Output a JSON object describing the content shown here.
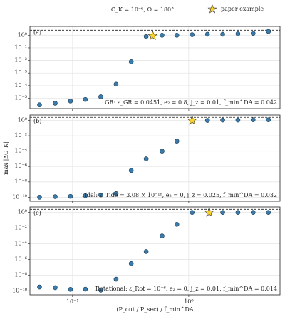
{
  "chart_data": [
    {
      "type": "scatter",
      "title": "C_K = 10⁻⁶,   Ω = 180°",
      "panel_label": "(a)",
      "annotation": "GR: ε_GR = 0.0451, e₂ = 0.8, j_z = 0.01, f_min^DA = 0.042",
      "x": [
        0.052,
        0.071,
        0.096,
        0.129,
        0.175,
        0.237,
        0.32,
        0.43,
        0.59,
        0.79,
        1.07,
        1.45,
        1.96,
        2.65,
        3.58,
        4.85
      ],
      "values": [
        3e-06,
        4e-06,
        6e-06,
        8e-06,
        1.3e-05,
        0.00013,
        0.008,
        0.8,
        1.0,
        1.0,
        1.1,
        1.2,
        1.2,
        1.3,
        1.4,
        2.0
      ],
      "color": "#3b7bab",
      "highlight": {
        "name": "paper example",
        "x": 0.49,
        "value": 0.9,
        "color": "#f5d132"
      },
      "reference_line": 2.5,
      "xlim": [
        0.043,
        6.1
      ],
      "ylim": [
        1.5e-06,
        5
      ],
      "log_x": true,
      "log_y": true,
      "grid": true,
      "xticks": [
        0.1,
        1
      ],
      "yticks": [
        {
          "value": 1e-05,
          "label": "10⁻⁵"
        },
        {
          "value": 0.0001,
          "label": "10⁻⁴"
        },
        {
          "value": 0.001,
          "label": "10⁻³"
        },
        {
          "value": 0.01,
          "label": "10⁻²"
        },
        {
          "value": 0.1,
          "label": "10⁻¹"
        },
        {
          "value": 1,
          "label": "10⁰"
        }
      ]
    },
    {
      "type": "scatter",
      "panel_label": "(b)",
      "y_label": "max |ΔC_K|",
      "annotation": "Tidal: ε_Tide = 3.08 × 10⁻¹⁶, e₂ = 0, j_z = 0.025, f_min^DA = 0.032",
      "x": [
        0.052,
        0.071,
        0.096,
        0.129,
        0.175,
        0.237,
        0.32,
        0.43,
        0.59,
        0.79,
        1.07,
        1.45,
        1.96,
        2.65,
        3.58,
        4.85
      ],
      "values": [
        1e-10,
        1.2e-10,
        1.3e-10,
        1.6e-10,
        2e-10,
        3e-10,
        3e-07,
        1e-05,
        0.0001,
        0.002,
        null,
        1.0,
        1.1,
        1.1,
        1.2,
        1.2
      ],
      "color": "#3b7bab",
      "highlight": {
        "x": 1.07,
        "value": 1.0,
        "color": "#f5d132"
      },
      "reference_line": 2.5,
      "xlim": [
        0.043,
        6.1
      ],
      "ylim": [
        3e-11,
        5
      ],
      "log_x": true,
      "log_y": true,
      "grid": true,
      "xticks": [
        0.1,
        1
      ],
      "yticks": [
        {
          "value": 1e-10,
          "label": "10⁻¹⁰"
        },
        {
          "value": 1e-08,
          "label": "10⁻⁸"
        },
        {
          "value": 1e-06,
          "label": "10⁻⁶"
        },
        {
          "value": 0.0001,
          "label": "10⁻⁴"
        },
        {
          "value": 0.01,
          "label": "10⁻²"
        },
        {
          "value": 1,
          "label": "10⁰"
        }
      ]
    },
    {
      "type": "scatter",
      "panel_label": "(c)",
      "x_label": "(P_out / P_sec) / f_min^DA",
      "annotation": "Rotational: ε_Rot = 10⁻⁶, e₂ = 0, j_z = 0.01, f_min^DA = 0.014",
      "x": [
        0.052,
        0.071,
        0.096,
        0.129,
        0.175,
        0.237,
        0.32,
        0.43,
        0.59,
        0.79,
        1.07,
        1.45,
        1.96,
        2.65,
        3.58,
        4.85
      ],
      "values": [
        3e-10,
        2.5e-10,
        1.5e-10,
        1.6e-10,
        1.2e-10,
        3e-09,
        3e-07,
        1e-05,
        0.001,
        0.03,
        1.0,
        null,
        1.0,
        1.0,
        1.0,
        1.0
      ],
      "color": "#3b7bab",
      "highlight": {
        "x": 1.5,
        "value": 1.0,
        "color": "#f5d132"
      },
      "reference_line": 2.5,
      "xlim": [
        0.043,
        6.1
      ],
      "ylim": [
        3e-11,
        5
      ],
      "log_x": true,
      "log_y": true,
      "grid": true,
      "xticks": [
        {
          "value": 0.1,
          "label": "10⁻¹"
        },
        {
          "value": 1,
          "label": "10⁰"
        }
      ],
      "yticks": [
        {
          "value": 1e-10,
          "label": "10⁻¹⁰"
        },
        {
          "value": 1e-08,
          "label": "10⁻⁸"
        },
        {
          "value": 1e-06,
          "label": "10⁻⁶"
        },
        {
          "value": 0.0001,
          "label": "10⁻⁴"
        },
        {
          "value": 0.01,
          "label": "10⁻²"
        },
        {
          "value": 1,
          "label": "10⁰"
        }
      ]
    }
  ]
}
